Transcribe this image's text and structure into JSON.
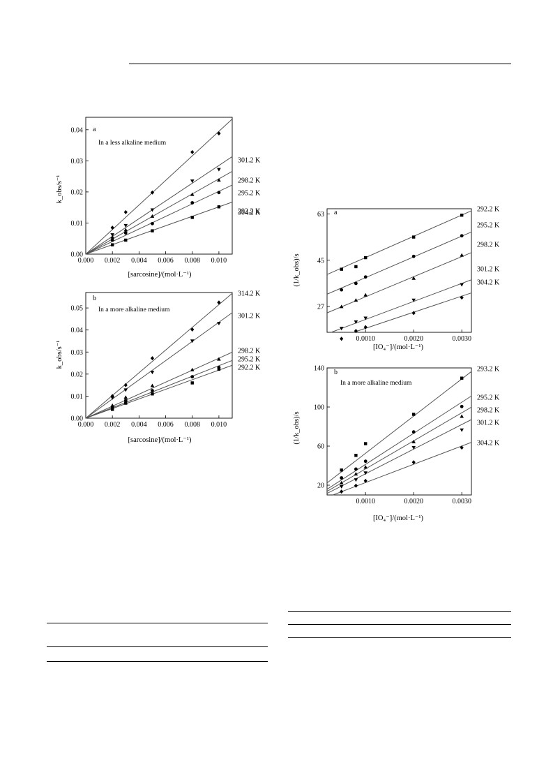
{
  "chart_data": [
    {
      "type": "scatter",
      "panel": "a",
      "annotation": "In a less alkaline medium",
      "xlabel": "[sarcosine]/(mol·L⁻¹)",
      "ylabel": "k_obs/s⁻¹",
      "xlim": [
        0,
        0.011
      ],
      "ylim": [
        0,
        0.044
      ],
      "xticks": [
        "0.000",
        "0.002",
        "0.004",
        "0.006",
        "0.008",
        "0.010"
      ],
      "yticks": [
        "0.00",
        "0.01",
        "0.02",
        "0.03",
        "0.04"
      ],
      "fits": "linear through origin",
      "series": [
        {
          "name": "304.2 K",
          "marker": "diamond",
          "slope": 3.95,
          "x": [
            0.002,
            0.003,
            0.005,
            0.008,
            0.01
          ],
          "y": [
            0.0085,
            0.0135,
            0.0198,
            0.0328,
            0.0388
          ]
        },
        {
          "name": "301.2 K",
          "marker": "triangle-down",
          "slope": 2.85,
          "x": [
            0.002,
            0.003,
            0.005,
            0.008,
            0.01
          ],
          "y": [
            0.0062,
            0.0092,
            0.0142,
            0.0235,
            0.0272
          ]
        },
        {
          "name": "298.2 K",
          "marker": "triangle-up",
          "slope": 2.42,
          "x": [
            0.002,
            0.003,
            0.005,
            0.008,
            0.01
          ],
          "y": [
            0.0055,
            0.0078,
            0.0122,
            0.0192,
            0.0238
          ]
        },
        {
          "name": "295.2 K",
          "marker": "circle",
          "slope": 2.02,
          "x": [
            0.002,
            0.003,
            0.005,
            0.008,
            0.01
          ],
          "y": [
            0.0045,
            0.0068,
            0.0098,
            0.0165,
            0.0198
          ]
        },
        {
          "name": "292.2 K",
          "marker": "square",
          "slope": 1.52,
          "x": [
            0.002,
            0.003,
            0.005,
            0.008,
            0.01
          ],
          "y": [
            0.003,
            0.0045,
            0.0075,
            0.0118,
            0.0152
          ]
        }
      ]
    },
    {
      "type": "scatter",
      "panel": "b",
      "annotation": "In a more alkaline medium",
      "xlabel": "[sarcosine]/(mol·L⁻¹)",
      "ylabel": "k_obs/s⁻¹",
      "xlim": [
        0,
        0.011
      ],
      "ylim": [
        0,
        0.057
      ],
      "xticks": [
        "0.000",
        "0.002",
        "0.004",
        "0.006",
        "0.008",
        "0.010"
      ],
      "yticks": [
        "0.00",
        "0.01",
        "0.02",
        "0.03",
        "0.04",
        "0.05"
      ],
      "fits": "linear through origin",
      "series": [
        {
          "name": "314.2 K",
          "marker": "diamond",
          "slope": 5.15,
          "x": [
            0.002,
            0.003,
            0.005,
            0.008,
            0.01
          ],
          "y": [
            0.01,
            0.015,
            0.0272,
            0.0402,
            0.0525
          ]
        },
        {
          "name": "301.2 K",
          "marker": "triangle-down",
          "slope": 4.35,
          "x": [
            0.002,
            0.003,
            0.005,
            0.008,
            0.01
          ],
          "y": [
            0.0092,
            0.0128,
            0.0208,
            0.035,
            0.043
          ]
        },
        {
          "name": "298.2 K",
          "marker": "triangle-up",
          "slope": 2.72,
          "x": [
            0.002,
            0.003,
            0.005,
            0.008,
            0.01
          ],
          "y": [
            0.0058,
            0.0095,
            0.0148,
            0.022,
            0.0268
          ]
        },
        {
          "name": "295.2 K",
          "marker": "circle",
          "slope": 2.38,
          "x": [
            0.002,
            0.003,
            0.005,
            0.008,
            0.01
          ],
          "y": [
            0.0048,
            0.008,
            0.0125,
            0.0188,
            0.023
          ]
        },
        {
          "name": "292.2 K",
          "marker": "square",
          "slope": 2.18,
          "x": [
            0.002,
            0.003,
            0.005,
            0.008,
            0.01
          ],
          "y": [
            0.004,
            0.0068,
            0.011,
            0.016,
            0.0222
          ]
        }
      ]
    },
    {
      "type": "scatter",
      "panel": "a",
      "xlabel": "[IO₄⁻]/(mol·L⁻¹)",
      "ylabel": "(1/k_obs)/s",
      "xlim": [
        0.0002,
        0.0032
      ],
      "ylim": [
        17,
        65
      ],
      "xticks": [
        "0.0010",
        "0.0020",
        "0.0030"
      ],
      "xtick_values": [
        0.001,
        0.002,
        0.003
      ],
      "yticks": [
        "27",
        "45",
        "63"
      ],
      "ytick_values": [
        27,
        45,
        63
      ],
      "fits": "linear",
      "series": [
        {
          "name": "292.2 K",
          "marker": "square",
          "line": [
            37.8,
            8250
          ],
          "x": [
            0.0005,
            0.0008,
            0.001,
            0.002,
            0.003
          ],
          "y": [
            41.5,
            42.5,
            46.0,
            54.0,
            62.5
          ]
        },
        {
          "name": "295.2 K",
          "marker": "circle",
          "line": [
            30.2,
            8050
          ],
          "x": [
            0.0005,
            0.0008,
            0.001,
            0.002,
            0.003
          ],
          "y": [
            33.5,
            36.0,
            38.5,
            46.5,
            54.5
          ]
        },
        {
          "name": "298.2 K",
          "marker": "triangle-up",
          "line": [
            23.0,
            7800
          ],
          "x": [
            0.0005,
            0.0008,
            0.001,
            0.002,
            0.003
          ],
          "y": [
            27.0,
            29.5,
            31.5,
            38.0,
            47.0
          ]
        },
        {
          "name": "301.2 K",
          "marker": "triangle-down",
          "line": [
            15.0,
            7000
          ],
          "x": [
            0.0005,
            0.0008,
            0.001,
            0.002,
            0.003
          ],
          "y": [
            18.5,
            21.0,
            22.5,
            29.5,
            35.5
          ]
        },
        {
          "name": "304.2 K",
          "marker": "diamond",
          "line": [
            12.3,
            6250
          ],
          "x": [
            0.0005,
            0.0008,
            0.001,
            0.002,
            0.003
          ],
          "y": [
            14.5,
            17.5,
            19.0,
            24.5,
            30.5
          ]
        }
      ]
    },
    {
      "type": "scatter",
      "panel": "b",
      "annotation": "In a more alkaline medium",
      "xlabel": "[IO₄⁻]/(mol·L⁻¹)",
      "ylabel": "(1/k_obs)/s",
      "xlim": [
        0.0002,
        0.0032
      ],
      "ylim": [
        10,
        140
      ],
      "xticks": [
        "0.0010",
        "0.0020",
        "0.0030"
      ],
      "xtick_values": [
        0.001,
        0.002,
        0.003
      ],
      "yticks": [
        "20",
        "60",
        "100",
        "140"
      ],
      "ytick_values": [
        20,
        60,
        100,
        140
      ],
      "fits": "linear",
      "series": [
        {
          "name": "293.2 K",
          "marker": "square",
          "line": [
            14.7,
            38000
          ],
          "x": [
            0.0005,
            0.0008,
            0.001,
            0.002,
            0.003
          ],
          "y": [
            35.5,
            50.5,
            62.5,
            92.5,
            129.5
          ]
        },
        {
          "name": "295.2 K",
          "marker": "circle",
          "line": [
            9.5,
            31800
          ],
          "x": [
            0.0005,
            0.0008,
            0.001,
            0.002,
            0.003
          ],
          "y": [
            27.5,
            36.5,
            44.5,
            74.5,
            100.5
          ]
        },
        {
          "name": "298.2 K",
          "marker": "triangle-up",
          "line": [
            8.0,
            28700
          ],
          "x": [
            0.0005,
            0.0008,
            0.001,
            0.002,
            0.003
          ],
          "y": [
            22.5,
            31.5,
            38.5,
            64.5,
            90.5
          ]
        },
        {
          "name": "301.2 K",
          "marker": "triangle-down",
          "line": [
            6.5,
            25200
          ],
          "x": [
            0.0005,
            0.0008,
            0.001,
            0.002,
            0.003
          ],
          "y": [
            18.5,
            25.5,
            32.5,
            58.5,
            76.5
          ]
        },
        {
          "name": "304.2 K",
          "marker": "diamond",
          "line": [
            4.0,
            18700
          ],
          "x": [
            0.0005,
            0.0008,
            0.001,
            0.002,
            0.003
          ],
          "y": [
            13.5,
            19.5,
            24.5,
            43.5,
            58.5
          ]
        }
      ]
    }
  ]
}
